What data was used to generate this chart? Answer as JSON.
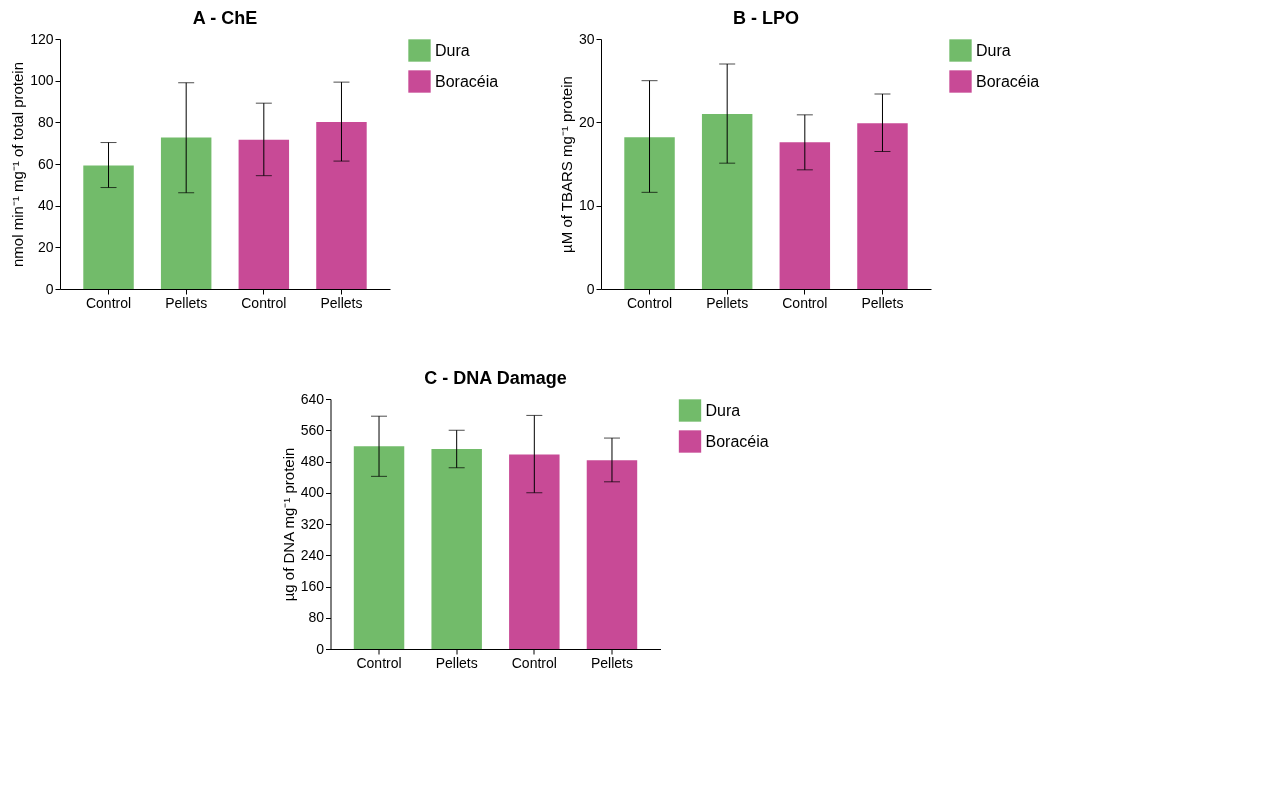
{
  "chart_data": [
    {
      "type": "bar",
      "title": "A - ChE",
      "ylabel": "nmol min⁻¹ mg⁻¹ of total protein",
      "categories": [
        "Control",
        "Pellets",
        "Control",
        "Pellets"
      ],
      "ylim": [
        0,
        120
      ],
      "yticks": [
        0,
        20,
        40,
        60,
        80,
        100,
        120
      ],
      "grid": false,
      "legend": "top right",
      "series": [
        {
          "name": "Dura",
          "color": "#72bb6a",
          "values": [
            59.3,
            72.7,
            null,
            null
          ],
          "errors": [
            [
              48.7,
              70.3
            ],
            [
              46.2,
              99.0
            ],
            null,
            null
          ]
        },
        {
          "name": "Boracéia",
          "color": "#c84a96",
          "values": [
            null,
            null,
            71.7,
            80.2
          ],
          "errors": [
            null,
            null,
            [
              54.4,
              89.2
            ],
            [
              61.4,
              99.3
            ]
          ]
        }
      ]
    },
    {
      "type": "bar",
      "title": "B - LPO",
      "ylabel": "µM of TBARS mg⁻¹ protein",
      "categories": [
        "Control",
        "Pellets",
        "Control",
        "Pellets"
      ],
      "ylim": [
        0,
        30
      ],
      "yticks": [
        0,
        10,
        20,
        30
      ],
      "grid": false,
      "legend": "top right",
      "series": [
        {
          "name": "Dura",
          "color": "#72bb6a",
          "values": [
            18.2,
            21.0,
            null,
            null
          ],
          "errors": [
            [
              11.6,
              25.0
            ],
            [
              15.1,
              27.0
            ],
            null,
            null
          ]
        },
        {
          "name": "Boracéia",
          "color": "#c84a96",
          "values": [
            null,
            null,
            17.6,
            19.9
          ],
          "errors": [
            null,
            null,
            [
              14.3,
              20.9
            ],
            [
              16.5,
              23.4
            ]
          ]
        }
      ]
    },
    {
      "type": "bar",
      "title": "C - DNA Damage",
      "ylabel": "µg of DNA mg⁻¹ protein",
      "categories": [
        "Control",
        "Pellets",
        "Control",
        "Pellets"
      ],
      "ylim": [
        0,
        640
      ],
      "yticks": [
        0,
        80,
        160,
        240,
        320,
        400,
        480,
        560,
        640
      ],
      "grid": false,
      "legend": "top right",
      "series": [
        {
          "name": "Dura",
          "color": "#72bb6a",
          "values": [
            519,
            512,
            null,
            null
          ],
          "errors": [
            [
              442,
              596
            ],
            [
              464,
              560
            ],
            null,
            null
          ]
        },
        {
          "name": "Boracéia",
          "color": "#c84a96",
          "values": [
            null,
            null,
            498,
            483
          ],
          "errors": [
            null,
            null,
            [
              400,
              598
            ],
            [
              428,
              540
            ]
          ]
        }
      ]
    }
  ]
}
